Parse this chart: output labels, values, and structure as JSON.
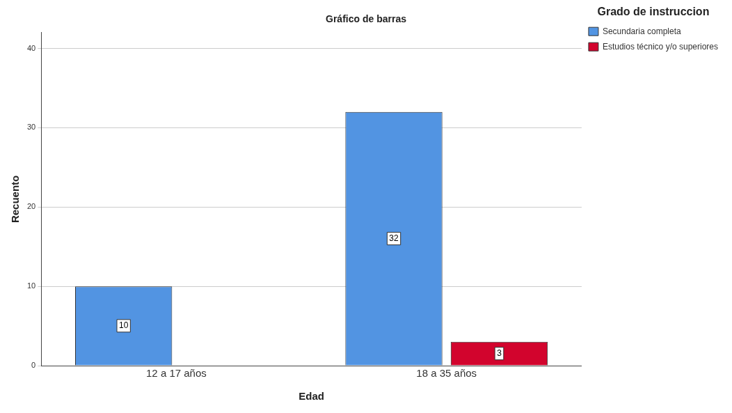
{
  "chart_data": {
    "type": "bar",
    "title": "Gráfico de barras",
    "xlabel": "Edad",
    "ylabel": "Recuento",
    "legend_title": "Grado de instruccion",
    "categories": [
      "12 a 17 años",
      "18 a 35 años"
    ],
    "series": [
      {
        "name": "Secundaria completa",
        "color": "#5294e2",
        "values": [
          10,
          32
        ]
      },
      {
        "name": "Estudios técnico y/o superiores",
        "color": "#d2042d",
        "values": [
          null,
          3
        ]
      }
    ],
    "ylim": [
      0,
      42
    ],
    "yticks": [
      0,
      10,
      20,
      30,
      40
    ],
    "grid": "y",
    "legend": "right",
    "data_labels": true
  }
}
